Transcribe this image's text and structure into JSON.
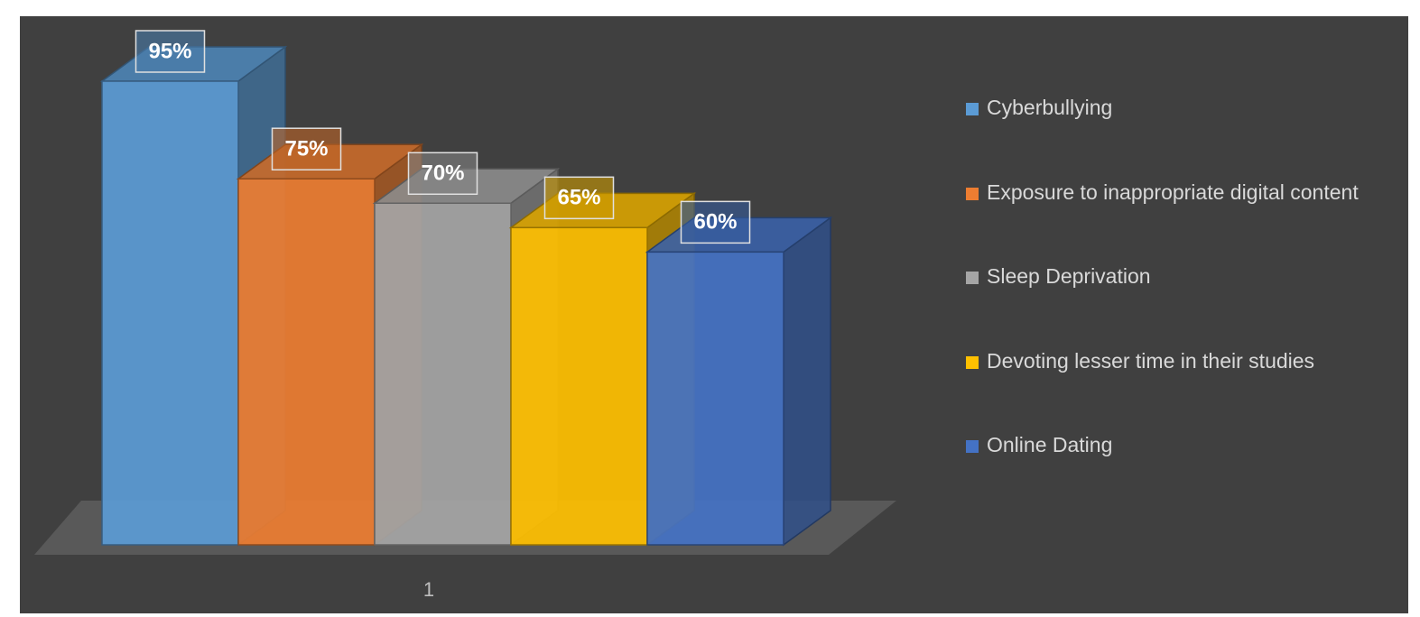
{
  "chart_data": {
    "type": "bar",
    "categories": [
      "1"
    ],
    "series": [
      {
        "name": "Cyberbullying",
        "color": "#5b9bd5",
        "values": [
          95
        ],
        "value_labels": [
          "95%"
        ]
      },
      {
        "name": "Exposure to inappropriate digital content",
        "color": "#ed7d31",
        "values": [
          75
        ],
        "value_labels": [
          "75%"
        ]
      },
      {
        "name": "Sleep Deprivation",
        "color": "#a5a5a5",
        "values": [
          70
        ],
        "value_labels": [
          "70%"
        ]
      },
      {
        "name": "Devoting lesser time in their studies",
        "color": "#ffc000",
        "values": [
          65
        ],
        "value_labels": [
          "65%"
        ]
      },
      {
        "name": "Online Dating",
        "color": "#4472c4",
        "values": [
          60
        ],
        "value_labels": [
          "60%"
        ]
      }
    ],
    "legend": "right"
  }
}
